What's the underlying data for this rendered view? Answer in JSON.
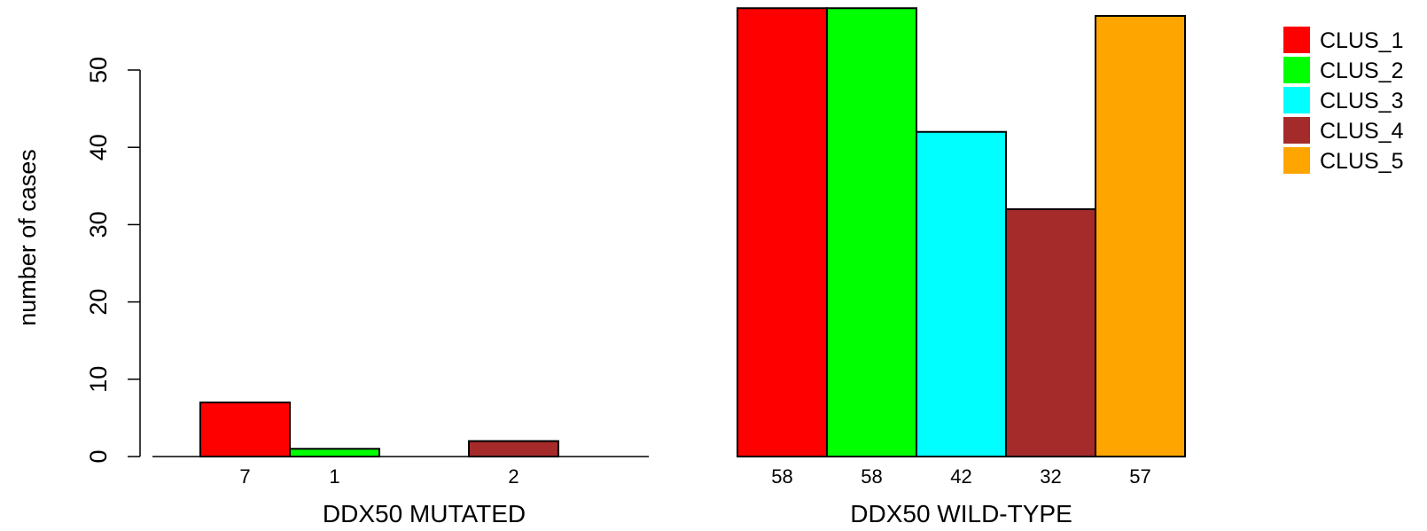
{
  "chart_data": {
    "type": "bar",
    "ylabel": "number of cases",
    "ylim": [
      0,
      58
    ],
    "yticks": [
      0,
      10,
      20,
      30,
      40,
      50
    ],
    "legend_position": "top-right",
    "series": [
      {
        "name": "CLUS_1",
        "color": "#ff0000"
      },
      {
        "name": "CLUS_2",
        "color": "#00ff00"
      },
      {
        "name": "CLUS_3",
        "color": "#00ffff"
      },
      {
        "name": "CLUS_4",
        "color": "#a52a2a"
      },
      {
        "name": "CLUS_5",
        "color": "#ffa500"
      }
    ],
    "groups": [
      {
        "label": "DDX50 MUTATED",
        "values": [
          7,
          1,
          0,
          2,
          0
        ],
        "value_labels": [
          "7",
          "1",
          "",
          "2",
          ""
        ]
      },
      {
        "label": "DDX50 WILD-TYPE",
        "values": [
          58,
          58,
          42,
          32,
          57
        ],
        "value_labels": [
          "58",
          "58",
          "42",
          "32",
          "57"
        ]
      }
    ]
  }
}
